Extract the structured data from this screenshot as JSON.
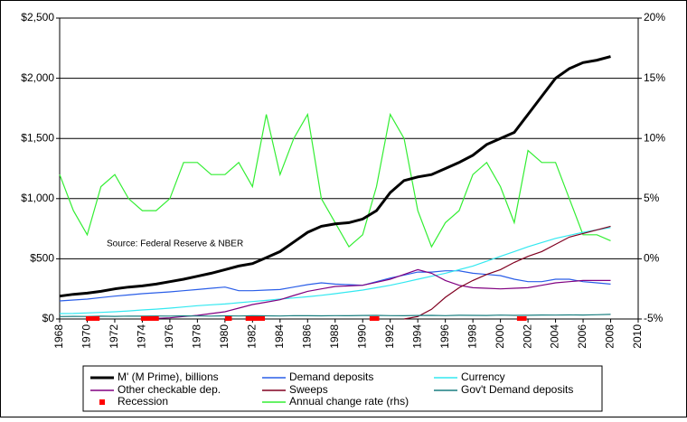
{
  "chart_data": {
    "type": "line",
    "x": [
      1968,
      1969,
      1970,
      1971,
      1972,
      1973,
      1974,
      1975,
      1976,
      1977,
      1978,
      1979,
      1980,
      1981,
      1982,
      1983,
      1984,
      1985,
      1986,
      1987,
      1988,
      1989,
      1990,
      1991,
      1992,
      1993,
      1994,
      1995,
      1996,
      1997,
      1998,
      1999,
      2000,
      2001,
      2002,
      2003,
      2004,
      2005,
      2006,
      2007,
      2008
    ],
    "xlim": [
      1968,
      2010
    ],
    "xticks": [
      1968,
      1970,
      1972,
      1974,
      1976,
      1978,
      1980,
      1982,
      1984,
      1986,
      1988,
      1990,
      1992,
      1994,
      1996,
      1998,
      2000,
      2002,
      2004,
      2006,
      2008,
      2010
    ],
    "ylim": [
      0,
      2500
    ],
    "yticks": [
      {
        "value": 0,
        "label": "$0"
      },
      {
        "value": 500,
        "label": "$500"
      },
      {
        "value": 1000,
        "label": "$1,000"
      },
      {
        "value": 1500,
        "label": "$1,500"
      },
      {
        "value": 2000,
        "label": "$2,000"
      },
      {
        "value": 2500,
        "label": "$2,500"
      }
    ],
    "y2lim": [
      -5,
      20
    ],
    "y2ticks": [
      {
        "value": -5,
        "label": "-5%"
      },
      {
        "value": 0,
        "label": "0%"
      },
      {
        "value": 5,
        "label": "5%"
      },
      {
        "value": 10,
        "label": "10%"
      },
      {
        "value": 15,
        "label": "15%"
      },
      {
        "value": 20,
        "label": "20%"
      }
    ],
    "grid": true,
    "annotation": "Source: Federal Reserve & NBER",
    "series": [
      {
        "name": "M' (M Prime), billions",
        "color": "#000000",
        "values": [
          190,
          205,
          215,
          230,
          250,
          265,
          275,
          290,
          310,
          330,
          355,
          380,
          410,
          440,
          460,
          510,
          560,
          640,
          720,
          770,
          790,
          800,
          830,
          900,
          1050,
          1150,
          1180,
          1200,
          1250,
          1300,
          1360,
          1450,
          1500,
          1550,
          1700,
          1850,
          2000,
          2080,
          2130,
          2150,
          2180
        ]
      },
      {
        "name": "Demand deposits",
        "color": "#2a5ee8",
        "values": [
          150,
          158,
          165,
          178,
          190,
          200,
          210,
          218,
          225,
          235,
          245,
          255,
          265,
          235,
          235,
          240,
          245,
          265,
          285,
          300,
          290,
          285,
          280,
          310,
          340,
          365,
          390,
          390,
          400,
          400,
          380,
          370,
          360,
          330,
          310,
          310,
          330,
          330,
          310,
          300,
          290
        ]
      },
      {
        "name": "Currency",
        "color": "#33e8f0",
        "values": [
          45,
          46,
          50,
          55,
          60,
          67,
          75,
          82,
          90,
          100,
          110,
          118,
          125,
          135,
          145,
          155,
          165,
          175,
          185,
          197,
          210,
          225,
          240,
          260,
          280,
          305,
          330,
          355,
          380,
          410,
          440,
          480,
          520,
          560,
          600,
          635,
          670,
          695,
          720,
          740,
          760
        ]
      },
      {
        "name": "Other checkable dep.",
        "color": "#800080",
        "values": [
          null,
          null,
          null,
          null,
          null,
          null,
          0,
          5,
          10,
          20,
          30,
          45,
          60,
          90,
          120,
          140,
          160,
          195,
          230,
          250,
          270,
          275,
          280,
          305,
          330,
          370,
          410,
          380,
          320,
          280,
          260,
          255,
          250,
          255,
          260,
          280,
          300,
          310,
          320,
          320,
          320
        ]
      },
      {
        "name": "Sweeps",
        "color": "#800020",
        "values": [
          null,
          null,
          null,
          null,
          null,
          null,
          null,
          null,
          null,
          null,
          null,
          null,
          null,
          null,
          null,
          null,
          null,
          null,
          null,
          null,
          null,
          null,
          null,
          null,
          null,
          0,
          20,
          80,
          180,
          260,
          320,
          370,
          410,
          470,
          520,
          560,
          620,
          680,
          710,
          740,
          770
        ]
      },
      {
        "name": "Gov't Demand deposits",
        "color": "#1a7f80",
        "values": [
          20,
          22,
          21,
          23,
          22,
          24,
          23,
          25,
          24,
          26,
          25,
          24,
          26,
          25,
          27,
          26,
          25,
          28,
          27,
          26,
          28,
          27,
          29,
          30,
          28,
          27,
          29,
          30,
          28,
          31,
          30,
          29,
          32,
          30,
          31,
          33,
          32,
          34,
          33,
          35,
          38
        ]
      },
      {
        "name": "Annual change rate (rhs)",
        "color": "#33ee33",
        "axis": "y2",
        "values": [
          7,
          4,
          2,
          6,
          7,
          5,
          4,
          4,
          5,
          8,
          8,
          7,
          7,
          8,
          6,
          12,
          7,
          10,
          12,
          5,
          3,
          1,
          2,
          6,
          12,
          10,
          4,
          1,
          3,
          4,
          7,
          8,
          6,
          3,
          9,
          8,
          8,
          5,
          2,
          2,
          1.5
        ]
      }
    ],
    "recession": {
      "name": "Recession",
      "color": "#ff0000",
      "periods": [
        [
          1969.9,
          1970.9
        ],
        [
          1973.9,
          1975.2
        ],
        [
          1980.0,
          1980.5
        ],
        [
          1981.5,
          1982.9
        ],
        [
          1990.5,
          1991.2
        ],
        [
          2001.2,
          2001.9
        ]
      ]
    }
  }
}
